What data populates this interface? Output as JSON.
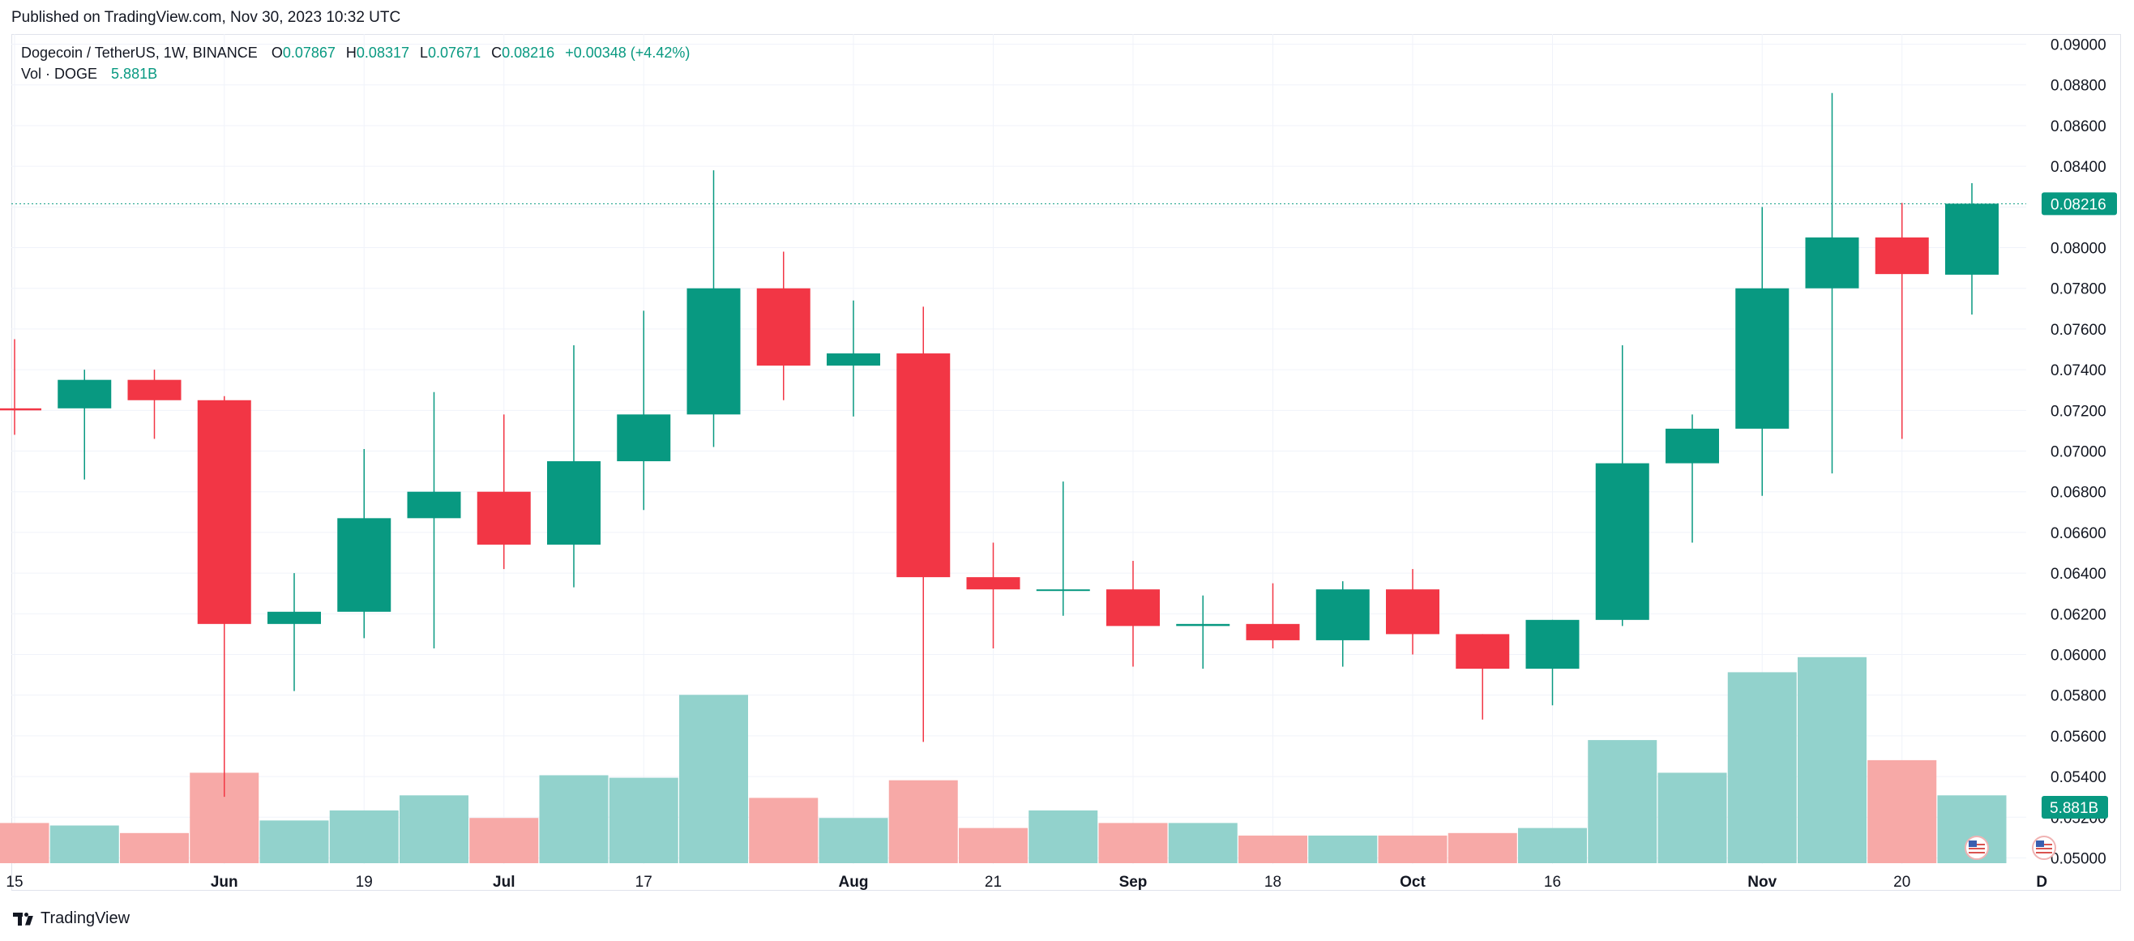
{
  "published": "Published on TradingView.com, Nov 30, 2023 10:32 UTC",
  "legend": {
    "symbol": "Dogecoin / TetherUS, 1W, BINANCE",
    "o_label": "O",
    "o_value": "0.07867",
    "h_label": "H",
    "h_value": "0.08317",
    "l_label": "L",
    "l_value": "0.07671",
    "c_label": "C",
    "c_value": "0.08216",
    "change": "+0.00348 (+4.42%)",
    "vol_label": "Vol · DOGE",
    "vol_value": "5.881B"
  },
  "footer": {
    "brand": "TradingView"
  },
  "colors": {
    "up": "#089981",
    "down": "#f23645",
    "vol_up": "#92d2cc",
    "vol_down": "#f7a9a7",
    "grid": "#f0f3fa",
    "axis_text": "#131722"
  },
  "chart_data": {
    "type": "candlestick",
    "title": "Dogecoin / TetherUS, 1W, BINANCE",
    "ylim": [
      0.0497,
      0.0905
    ],
    "y_ticks": [
      "0.09000",
      "0.08800",
      "0.08600",
      "0.08400",
      "0.08200",
      "0.08000",
      "0.07800",
      "0.07600",
      "0.07400",
      "0.07200",
      "0.07000",
      "0.06800",
      "0.06600",
      "0.06400",
      "0.06200",
      "0.06000",
      "0.05800",
      "0.05600",
      "0.05400",
      "0.05200",
      "0.05000"
    ],
    "x_ticks": [
      {
        "label": "15",
        "week": 0
      },
      {
        "label": "Jun",
        "week": 3
      },
      {
        "label": "19",
        "week": 5
      },
      {
        "label": "Jul",
        "week": 7
      },
      {
        "label": "17",
        "week": 9
      },
      {
        "label": "Aug",
        "week": 12
      },
      {
        "label": "21",
        "week": 14
      },
      {
        "label": "Sep",
        "week": 16
      },
      {
        "label": "18",
        "week": 18
      },
      {
        "label": "Oct",
        "week": 20
      },
      {
        "label": "16",
        "week": 22
      },
      {
        "label": "Nov",
        "week": 25
      },
      {
        "label": "20",
        "week": 27
      },
      {
        "label": "D",
        "week": 29
      }
    ],
    "last_price_label": "0.08216",
    "last_volume_label": "5.881B",
    "ohlc": [
      {
        "o": 0.0721,
        "h": 0.0755,
        "l": 0.0708,
        "c": 0.072
      },
      {
        "o": 0.0721,
        "h": 0.074,
        "l": 0.0686,
        "c": 0.0735
      },
      {
        "o": 0.0735,
        "h": 0.074,
        "l": 0.0706,
        "c": 0.0725
      },
      {
        "o": 0.0725,
        "h": 0.0727,
        "l": 0.053,
        "c": 0.0615
      },
      {
        "o": 0.0615,
        "h": 0.064,
        "l": 0.0582,
        "c": 0.0621
      },
      {
        "o": 0.0621,
        "h": 0.0701,
        "l": 0.0608,
        "c": 0.0667
      },
      {
        "o": 0.0667,
        "h": 0.0729,
        "l": 0.0603,
        "c": 0.068
      },
      {
        "o": 0.068,
        "h": 0.0718,
        "l": 0.0642,
        "c": 0.0654
      },
      {
        "o": 0.0654,
        "h": 0.0752,
        "l": 0.0633,
        "c": 0.0695
      },
      {
        "o": 0.0695,
        "h": 0.0769,
        "l": 0.0671,
        "c": 0.0718
      },
      {
        "o": 0.0718,
        "h": 0.0838,
        "l": 0.0702,
        "c": 0.078
      },
      {
        "o": 0.078,
        "h": 0.0798,
        "l": 0.0725,
        "c": 0.0742
      },
      {
        "o": 0.0742,
        "h": 0.0774,
        "l": 0.0717,
        "c": 0.0748
      },
      {
        "o": 0.0748,
        "h": 0.0771,
        "l": 0.0557,
        "c": 0.0638
      },
      {
        "o": 0.0638,
        "h": 0.0655,
        "l": 0.0603,
        "c": 0.0632
      },
      {
        "o": 0.0632,
        "h": 0.0685,
        "l": 0.0619,
        "c": 0.0632
      },
      {
        "o": 0.0632,
        "h": 0.0646,
        "l": 0.0594,
        "c": 0.0614
      },
      {
        "o": 0.0614,
        "h": 0.0629,
        "l": 0.0593,
        "c": 0.0615
      },
      {
        "o": 0.0615,
        "h": 0.0635,
        "l": 0.0603,
        "c": 0.0607
      },
      {
        "o": 0.0607,
        "h": 0.0636,
        "l": 0.0594,
        "c": 0.0632
      },
      {
        "o": 0.0632,
        "h": 0.0642,
        "l": 0.06,
        "c": 0.061
      },
      {
        "o": 0.061,
        "h": 0.061,
        "l": 0.0568,
        "c": 0.0593
      },
      {
        "o": 0.0593,
        "h": 0.0617,
        "l": 0.0575,
        "c": 0.0617
      },
      {
        "o": 0.0617,
        "h": 0.0752,
        "l": 0.0614,
        "c": 0.0694
      },
      {
        "o": 0.0694,
        "h": 0.0718,
        "l": 0.0655,
        "c": 0.0711
      },
      {
        "o": 0.0711,
        "h": 0.082,
        "l": 0.0678,
        "c": 0.078
      },
      {
        "o": 0.078,
        "h": 0.0876,
        "l": 0.0689,
        "c": 0.0805
      },
      {
        "o": 0.0805,
        "h": 0.0822,
        "l": 0.0706,
        "c": 0.0787
      },
      {
        "o": 0.07867,
        "h": 0.08317,
        "l": 0.07671,
        "c": 0.08216
      }
    ],
    "volume_relative": [
      0.16,
      0.15,
      0.12,
      0.36,
      0.17,
      0.21,
      0.27,
      0.18,
      0.35,
      0.34,
      0.67,
      0.26,
      0.18,
      0.33,
      0.14,
      0.21,
      0.16,
      0.16,
      0.11,
      0.11,
      0.11,
      0.12,
      0.14,
      0.49,
      0.36,
      0.76,
      0.82,
      0.41,
      0.27
    ]
  }
}
